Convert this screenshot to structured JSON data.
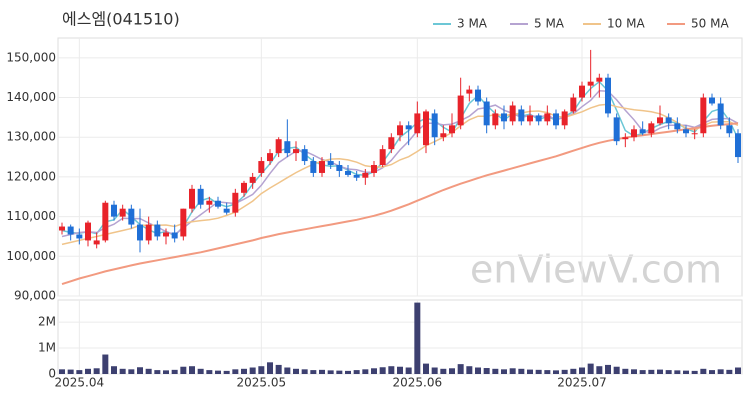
{
  "chart_data": {
    "type": "candlestick",
    "title": "에스엠(041510)",
    "watermark": "enViewV.com",
    "categories": [
      null,
      null,
      "2025.04",
      null,
      null,
      null,
      null,
      null,
      null,
      null,
      null,
      null,
      null,
      null,
      null,
      null,
      null,
      null,
      null,
      null,
      null,
      null,
      null,
      "2025.05",
      null,
      null,
      null,
      null,
      null,
      null,
      null,
      null,
      null,
      null,
      null,
      null,
      null,
      null,
      null,
      null,
      null,
      "2025.06",
      null,
      null,
      null,
      null,
      null,
      null,
      null,
      null,
      null,
      null,
      null,
      null,
      null,
      null,
      null,
      null,
      null,
      null,
      "2025.07",
      null,
      null,
      null,
      null,
      null,
      null,
      null,
      null,
      null,
      null,
      null,
      null,
      null,
      null,
      null,
      null,
      null,
      null
    ],
    "open": [
      106500,
      107500,
      105500,
      104000,
      103000,
      104000,
      113000,
      110000,
      112000,
      108000,
      104000,
      108000,
      105000,
      106000,
      105000,
      112000,
      117000,
      113000,
      114000,
      112000,
      111000,
      116000,
      118500,
      121000,
      124000,
      126000,
      129000,
      126000,
      127000,
      124000,
      121000,
      124000,
      123000,
      121500,
      120500,
      119800,
      121000,
      123000,
      127000,
      130500,
      133000,
      131000,
      128000,
      136000,
      130000,
      131000,
      133000,
      141000,
      142000,
      139000,
      133000,
      136000,
      134000,
      137000,
      134000,
      135500,
      134000,
      136000,
      133000,
      136500,
      140000,
      143000,
      144000,
      145000,
      135000,
      129500,
      130000,
      132000,
      131000,
      133500,
      135000,
      133500,
      132000,
      131000,
      131000,
      140000,
      138500,
      133000,
      131000
    ],
    "high": [
      108500,
      108000,
      107000,
      109000,
      106000,
      114000,
      114000,
      113000,
      113000,
      112000,
      110000,
      109000,
      107000,
      108000,
      112000,
      118000,
      118000,
      115000,
      115000,
      113500,
      117000,
      119000,
      121000,
      125000,
      127000,
      130000,
      134500,
      129000,
      128000,
      125000,
      125000,
      126000,
      124000,
      123000,
      121500,
      122000,
      124000,
      128000,
      131000,
      134000,
      134000,
      139000,
      137000,
      137000,
      133000,
      136000,
      145000,
      143000,
      143000,
      140000,
      137000,
      138000,
      139000,
      138000,
      138000,
      136000,
      138000,
      137000,
      137000,
      141000,
      144000,
      152000,
      146000,
      146000,
      136000,
      131000,
      133000,
      134000,
      134000,
      138000,
      136000,
      135000,
      133000,
      132000,
      141000,
      141000,
      140000,
      135000,
      132000
    ],
    "low": [
      105500,
      104000,
      103000,
      102500,
      102000,
      103500,
      109000,
      109000,
      107000,
      101000,
      103000,
      104000,
      103000,
      103500,
      104000,
      111000,
      112000,
      111000,
      112000,
      110500,
      110000,
      115000,
      117000,
      120000,
      123000,
      125000,
      125000,
      124000,
      123000,
      120000,
      120000,
      122000,
      120000,
      120000,
      119000,
      118000,
      120000,
      122500,
      126000,
      129000,
      128000,
      130000,
      126000,
      128000,
      129000,
      130000,
      132000,
      139000,
      138000,
      131000,
      132000,
      132000,
      133000,
      133000,
      133000,
      133000,
      133000,
      132000,
      132000,
      136000,
      139000,
      140000,
      140000,
      135000,
      128000,
      127500,
      129000,
      130500,
      130000,
      133000,
      132000,
      131000,
      130000,
      129500,
      130000,
      138000,
      132000,
      130000,
      123500
    ],
    "close": [
      107500,
      105500,
      104500,
      108500,
      104000,
      113500,
      110000,
      112000,
      108000,
      104000,
      108000,
      105000,
      106000,
      104500,
      112000,
      117000,
      113000,
      114000,
      112500,
      111000,
      116000,
      118500,
      120000,
      124000,
      126000,
      129500,
      126000,
      127000,
      124000,
      121000,
      124000,
      123000,
      121500,
      120500,
      119800,
      121000,
      123000,
      127000,
      130000,
      133000,
      132000,
      136000,
      136500,
      130000,
      131000,
      133000,
      140500,
      142000,
      139000,
      133000,
      136000,
      134000,
      138000,
      134000,
      135500,
      134000,
      136000,
      133000,
      136500,
      140000,
      143000,
      144000,
      145000,
      136000,
      129000,
      130000,
      132000,
      131000,
      133500,
      135000,
      133500,
      132000,
      131000,
      131000,
      140000,
      138500,
      133000,
      131000,
      125000
    ],
    "up_color": "#e8232a",
    "down_color": "#1f6fd6",
    "series": [
      {
        "name": "3 MA",
        "color": "#6cc7d6",
        "values": [
          106500,
          106000,
          105800,
          106200,
          105700,
          108700,
          109200,
          111800,
          110000,
          108000,
          106700,
          105700,
          106300,
          105200,
          107500,
          111200,
          114000,
          114700,
          113200,
          112500,
          113200,
          115200,
          118200,
          120800,
          123300,
          126500,
          127200,
          127500,
          125700,
          124000,
          123000,
          122700,
          122800,
          121700,
          120600,
          120400,
          121300,
          123700,
          126700,
          130000,
          131700,
          133700,
          134800,
          134200,
          132500,
          131300,
          134800,
          138500,
          140500,
          138000,
          136000,
          134300,
          136000,
          135300,
          135800,
          134500,
          135200,
          134300,
          135200,
          136500,
          139800,
          142300,
          144000,
          141700,
          136700,
          131700,
          130300,
          131000,
          132200,
          133200,
          134000,
          133500,
          132200,
          131300,
          134000,
          136500,
          137200,
          134200,
          129700
        ]
      },
      {
        "name": "5 MA",
        "color": "#b5a3d1",
        "values": [
          105000,
          105500,
          106000,
          106200,
          106000,
          107200,
          108100,
          109600,
          109500,
          109500,
          108400,
          107400,
          106200,
          105500,
          107100,
          108900,
          110500,
          112100,
          113700,
          113500,
          113300,
          114400,
          115600,
          117900,
          120900,
          123600,
          125100,
          126500,
          126500,
          125500,
          124400,
          123800,
          122700,
          122000,
          121800,
          121200,
          121200,
          122300,
          124200,
          126800,
          129000,
          131600,
          133500,
          133500,
          133100,
          133300,
          134200,
          135300,
          137100,
          137500,
          138100,
          136800,
          136000,
          135000,
          135500,
          135100,
          135500,
          134500,
          135000,
          135900,
          137700,
          139300,
          141700,
          141600,
          139400,
          136800,
          134400,
          131600,
          131100,
          132300,
          133000,
          133000,
          133000,
          132500,
          133500,
          134500,
          134700,
          134700,
          133500
        ]
      },
      {
        "name": "10 MA",
        "color": "#f0c48a",
        "values": [
          103000,
          103500,
          104000,
          104500,
          105000,
          105500,
          106000,
          106500,
          107000,
          107800,
          107800,
          107800,
          107900,
          107500,
          108300,
          108700,
          109000,
          109200,
          109600,
          110300,
          111100,
          112500,
          113900,
          115800,
          117200,
          118500,
          119800,
          121100,
          122200,
          123200,
          124000,
          124500,
          124600,
          124300,
          123700,
          122800,
          122500,
          122500,
          123100,
          124300,
          125100,
          126400,
          127900,
          128900,
          130000,
          131200,
          132900,
          134400,
          135300,
          135300,
          135700,
          135500,
          135700,
          136100,
          136500,
          136600,
          136200,
          135300,
          135000,
          135700,
          136400,
          137400,
          138100,
          138300,
          137700,
          137300,
          136900,
          136700,
          136400,
          135900,
          134900,
          133700,
          132300,
          131800,
          132900,
          133800,
          133900,
          133900,
          133000
        ]
      },
      {
        "name": "50 MA",
        "color": "#f29a80",
        "values": [
          93000,
          93700,
          94400,
          95000,
          95600,
          96200,
          96700,
          97200,
          97700,
          98200,
          98600,
          99000,
          99400,
          99800,
          100200,
          100600,
          101000,
          101500,
          102000,
          102500,
          103000,
          103500,
          104000,
          104600,
          105100,
          105600,
          106000,
          106400,
          106800,
          107200,
          107600,
          108000,
          108400,
          108800,
          109200,
          109700,
          110200,
          110800,
          111500,
          112300,
          113100,
          114000,
          114900,
          115800,
          116700,
          117500,
          118300,
          119000,
          119700,
          120400,
          121000,
          121600,
          122200,
          122800,
          123400,
          124000,
          124600,
          125200,
          125900,
          126600,
          127300,
          128000,
          128600,
          129100,
          129500,
          129900,
          130200,
          130500,
          130800,
          131100,
          131400,
          131700,
          132000,
          132300,
          132600,
          132900,
          133100,
          133300,
          133500
        ]
      }
    ],
    "ylim": [
      90000,
      155000
    ],
    "yticks": [
      {
        "value": 90000,
        "label": "90,000"
      },
      {
        "value": 100000,
        "label": "100,000"
      },
      {
        "value": 110000,
        "label": "110,000"
      },
      {
        "value": 120000,
        "label": "120,000"
      },
      {
        "value": 130000,
        "label": "130,000"
      },
      {
        "value": 140000,
        "label": "140,000"
      },
      {
        "value": 150000,
        "label": "150,000"
      }
    ],
    "volume": [
      180000,
      170000,
      150000,
      200000,
      220000,
      750000,
      300000,
      200000,
      180000,
      260000,
      200000,
      150000,
      140000,
      160000,
      280000,
      300000,
      200000,
      150000,
      130000,
      120000,
      180000,
      200000,
      250000,
      300000,
      450000,
      350000,
      250000,
      200000,
      180000,
      150000,
      160000,
      140000,
      130000,
      120000,
      150000,
      180000,
      220000,
      260000,
      300000,
      280000,
      250000,
      2750000,
      400000,
      250000,
      200000,
      220000,
      380000,
      300000,
      250000,
      230000,
      200000,
      180000,
      220000,
      200000,
      170000,
      160000,
      150000,
      140000,
      160000,
      200000,
      250000,
      400000,
      300000,
      350000,
      280000,
      200000,
      180000,
      150000,
      160000,
      170000,
      150000,
      140000,
      130000,
      120000,
      200000,
      150000,
      180000,
      160000,
      250000
    ],
    "volume_color": "#3d4070",
    "volume_ylim": [
      0,
      2850000
    ],
    "volume_yticks": [
      0,
      {
        "value": 1000000,
        "label": "1M"
      },
      {
        "value": 2000000,
        "label": "2M"
      }
    ],
    "grid": true
  }
}
